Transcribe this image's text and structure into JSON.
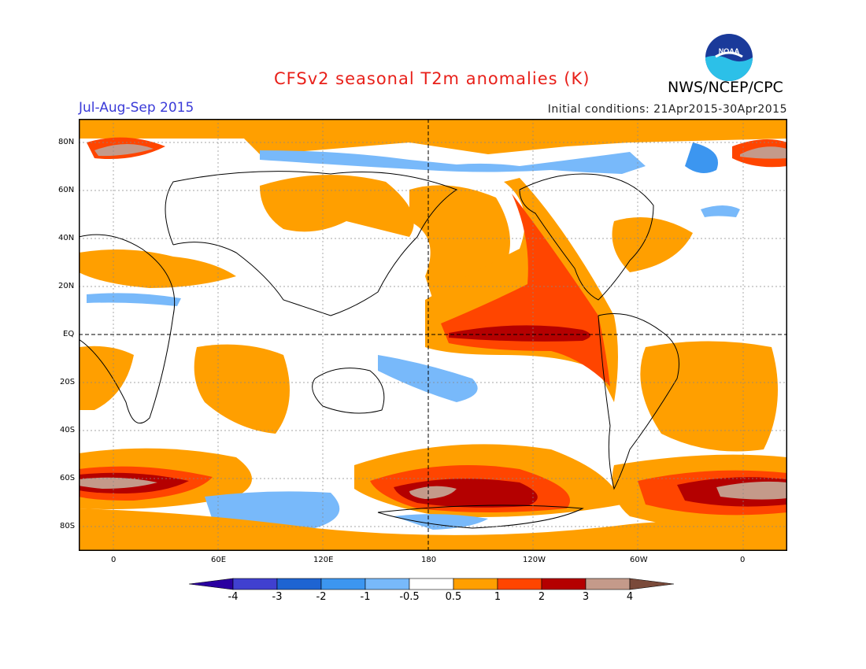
{
  "header": {
    "title": "CFSv2 seasonal T2m anomalies (K)",
    "agency": "NWS/NCEP/CPC",
    "period": "Jul-Aug-Sep 2015",
    "initial_conditions": "Initial conditions: 21Apr2015-30Apr2015"
  },
  "logo": {
    "text": "NOAA",
    "icon": "noaa-logo"
  },
  "map": {
    "lat_ticks": [
      "80N",
      "60N",
      "40N",
      "20N",
      "EQ",
      "20S",
      "40S",
      "60S",
      "80S"
    ],
    "lon_ticks": [
      "0",
      "60E",
      "120E",
      "180",
      "120W",
      "60W",
      "0"
    ]
  },
  "colorbar": {
    "labels": [
      "-4",
      "-3",
      "-2",
      "-1",
      "-0.5",
      "0.5",
      "1",
      "2",
      "3",
      "4"
    ],
    "colors": [
      "#2a00a0",
      "#4040d0",
      "#1e64d2",
      "#3c96f0",
      "#78b9fa",
      "#ffffff",
      "#ff9f00",
      "#ff4500",
      "#b40000",
      "#c49a8a",
      "#7a4a3a"
    ]
  }
}
